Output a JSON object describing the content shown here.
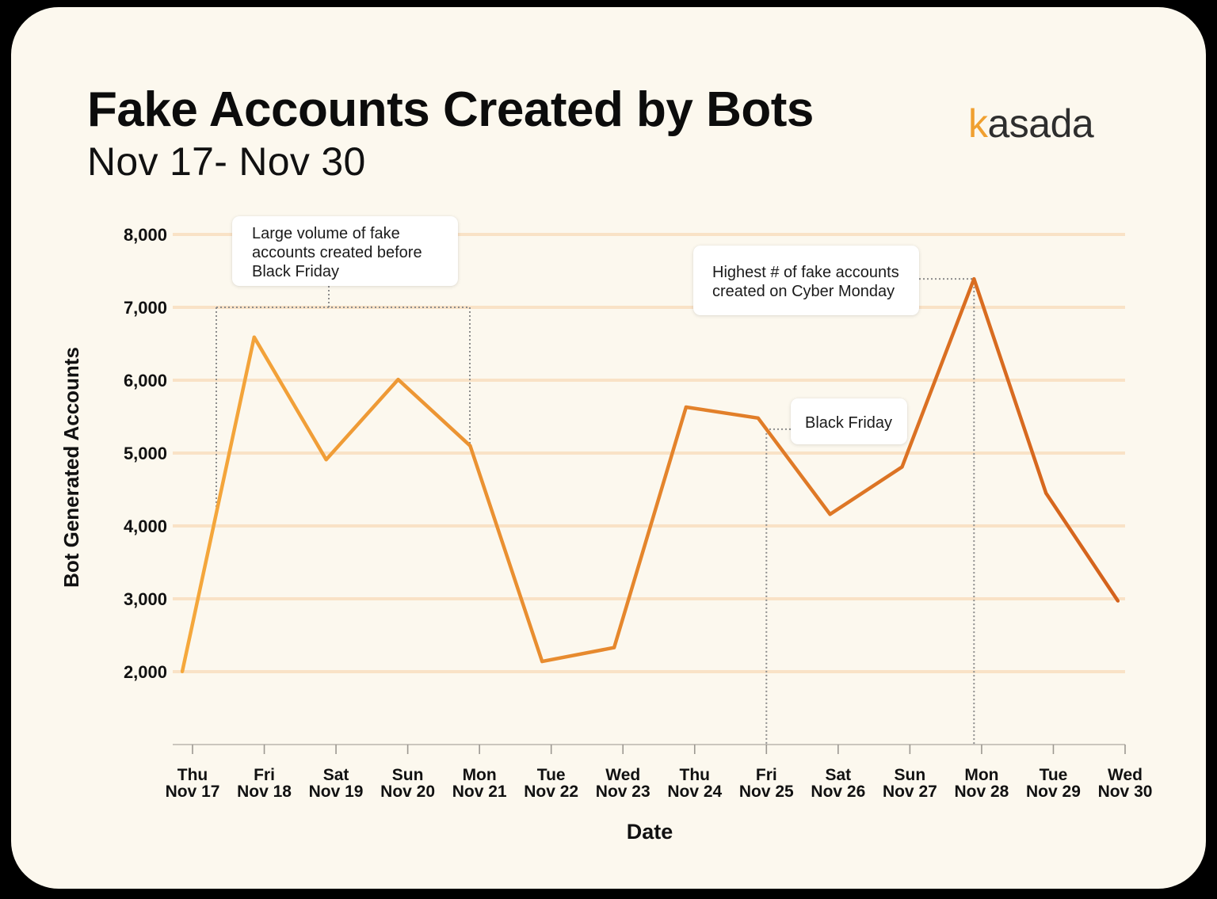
{
  "brand": {
    "logo_text": "kasada",
    "accent_color": "#F0A030"
  },
  "colors": {
    "card_background": "#FCF8EE",
    "gridline": "#F9E2C6",
    "axis_line": "#CBC6BE",
    "axis_tick": "#9C9891",
    "connector": "#8D8D8D",
    "line_start": "#F5A83C",
    "line_end": "#D4621C"
  },
  "chart_data": {
    "type": "line",
    "title": "Fake Accounts Created by Bots",
    "subtitle": "Nov 17- Nov 30",
    "xlabel": "Date",
    "ylabel": "Bot Generated Accounts",
    "weekdays": [
      "Thu",
      "Fri",
      "Sat",
      "Sun",
      "Mon",
      "Tue",
      "Wed",
      "Thu",
      "Fri",
      "Sat",
      "Sun",
      "Mon",
      "Tue",
      "Wed"
    ],
    "categories": [
      "Nov 17",
      "Nov 18",
      "Nov 19",
      "Nov 20",
      "Nov 21",
      "Nov 22",
      "Nov 23",
      "Nov 24",
      "Nov 25",
      "Nov 26",
      "Nov 27",
      "Nov 28",
      "Nov 29",
      "Nov 30"
    ],
    "values": [
      2000,
      6590,
      4910,
      6010,
      5100,
      2140,
      2330,
      5630,
      5480,
      4160,
      4810,
      7390,
      4450,
      2970
    ],
    "ylim": [
      1000,
      8000
    ],
    "y_ticks": [
      8000,
      7000,
      6000,
      5000,
      4000,
      3000,
      2000
    ],
    "y_tick_labels": [
      "8,000",
      "7,000",
      "6,000",
      "5,000",
      "4,000",
      "3,000",
      "2,000"
    ],
    "grid": true,
    "annotations": [
      {
        "lines": [
          "Large volume of fake",
          "accounts created before",
          "Black Friday"
        ]
      },
      {
        "lines": [
          "Highest # of fake accounts",
          "created on Cyber Monday"
        ]
      },
      {
        "lines": [
          "Black Friday"
        ]
      }
    ]
  }
}
